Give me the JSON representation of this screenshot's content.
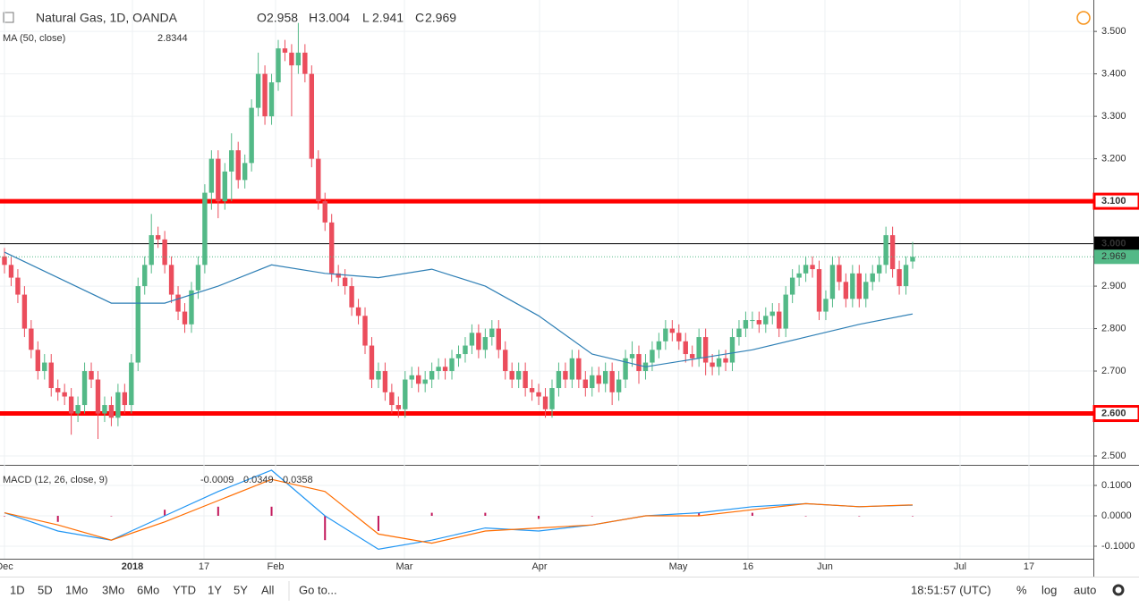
{
  "chart_data": {
    "type": "candlestick",
    "title": "Natural Gas, 1D, OANDA",
    "ohlc_labels": [
      "O",
      "H",
      "L",
      "C"
    ],
    "up_color": "#53b987",
    "down_color": "#eb4d5c",
    "open": [
      2.97,
      2.95,
      2.92,
      2.88,
      2.8,
      2.75,
      2.7,
      2.72,
      2.66,
      2.65,
      2.64,
      2.6,
      2.62,
      2.7,
      2.68,
      2.6,
      2.62,
      2.59,
      2.65,
      2.62,
      2.72,
      2.9,
      2.95,
      3.02,
      3.01,
      2.95,
      2.88,
      2.84,
      2.81,
      2.89,
      2.95,
      3.12,
      3.2,
      3.1,
      3.17,
      3.22,
      3.15,
      3.19,
      3.32,
      3.4,
      3.3,
      3.38,
      3.46,
      3.45,
      3.42,
      3.45,
      3.4,
      3.2,
      3.1,
      3.05,
      2.93,
      2.92,
      2.9,
      2.85,
      2.83,
      2.76,
      2.68,
      2.7,
      2.65,
      2.62,
      2.61,
      2.68,
      2.69,
      2.67,
      2.68,
      2.7,
      2.71,
      2.7,
      2.73,
      2.74,
      2.76,
      2.79,
      2.75,
      2.78,
      2.8,
      2.75,
      2.7,
      2.68,
      2.7,
      2.66,
      2.65,
      2.64,
      2.61,
      2.66,
      2.7,
      2.68,
      2.73,
      2.68,
      2.66,
      2.69,
      2.67,
      2.7,
      2.65,
      2.68,
      2.73,
      2.74,
      2.7,
      2.72,
      2.75,
      2.77,
      2.8,
      2.79,
      2.77,
      2.74,
      2.73,
      2.78,
      2.72,
      2.71,
      2.73,
      2.72,
      2.78,
      2.8,
      2.82,
      2.82,
      2.81,
      2.83,
      2.84,
      2.8,
      2.88,
      2.92,
      2.93,
      2.95,
      2.94,
      2.84,
      2.87,
      2.95,
      2.91,
      2.87,
      2.93,
      2.87,
      2.91,
      2.93,
      2.95,
      3.02,
      2.94,
      2.9,
      2.958
    ],
    "high": [
      2.99,
      2.97,
      2.94,
      2.9,
      2.82,
      2.77,
      2.74,
      2.74,
      2.68,
      2.67,
      2.66,
      2.64,
      2.72,
      2.72,
      2.7,
      2.64,
      2.64,
      2.67,
      2.67,
      2.74,
      2.92,
      2.97,
      3.07,
      3.04,
      3.03,
      2.97,
      2.9,
      2.86,
      2.91,
      2.97,
      3.14,
      3.22,
      3.22,
      3.19,
      3.26,
      3.24,
      3.21,
      3.34,
      3.45,
      3.42,
      3.4,
      3.48,
      3.48,
      3.47,
      3.52,
      3.47,
      3.42,
      3.22,
      3.12,
      3.07,
      2.95,
      2.94,
      2.92,
      2.87,
      2.85,
      2.78,
      2.72,
      2.72,
      2.67,
      2.64,
      2.7,
      2.71,
      2.71,
      2.7,
      2.72,
      2.73,
      2.73,
      2.75,
      2.76,
      2.78,
      2.81,
      2.81,
      2.8,
      2.82,
      2.82,
      2.77,
      2.72,
      2.72,
      2.72,
      2.68,
      2.67,
      2.66,
      2.68,
      2.72,
      2.72,
      2.75,
      2.75,
      2.7,
      2.71,
      2.71,
      2.72,
      2.72,
      2.7,
      2.75,
      2.77,
      2.76,
      2.74,
      2.77,
      2.79,
      2.82,
      2.82,
      2.81,
      2.79,
      2.76,
      2.8,
      2.8,
      2.74,
      2.75,
      2.75,
      2.8,
      2.82,
      2.84,
      2.84,
      2.84,
      2.85,
      2.86,
      2.86,
      2.9,
      2.94,
      2.95,
      2.97,
      2.97,
      2.96,
      2.89,
      2.97,
      2.97,
      2.93,
      2.95,
      2.95,
      2.93,
      2.95,
      2.97,
      3.04,
      3.04,
      2.96,
      2.97,
      3.004
    ],
    "low": [
      2.93,
      2.9,
      2.86,
      2.78,
      2.73,
      2.68,
      2.68,
      2.64,
      2.63,
      2.62,
      2.55,
      2.58,
      2.6,
      2.66,
      2.54,
      2.58,
      2.57,
      2.57,
      2.6,
      2.6,
      2.7,
      2.88,
      2.93,
      2.99,
      2.93,
      2.86,
      2.82,
      2.79,
      2.79,
      2.87,
      2.93,
      3.08,
      3.06,
      3.08,
      3.1,
      3.13,
      3.13,
      3.17,
      3.3,
      3.28,
      3.28,
      3.36,
      3.43,
      3.3,
      3.4,
      3.38,
      3.18,
      3.08,
      3.03,
      2.91,
      2.9,
      2.88,
      2.83,
      2.81,
      2.74,
      2.66,
      2.66,
      2.63,
      2.6,
      2.59,
      2.59,
      2.66,
      2.65,
      2.65,
      2.66,
      2.68,
      2.68,
      2.68,
      2.71,
      2.72,
      2.74,
      2.73,
      2.73,
      2.76,
      2.73,
      2.68,
      2.66,
      2.66,
      2.64,
      2.63,
      2.62,
      2.59,
      2.59,
      2.64,
      2.66,
      2.66,
      2.66,
      2.64,
      2.64,
      2.65,
      2.65,
      2.62,
      2.63,
      2.66,
      2.71,
      2.67,
      2.68,
      2.7,
      2.73,
      2.75,
      2.77,
      2.75,
      2.72,
      2.71,
      2.71,
      2.69,
      2.69,
      2.69,
      2.7,
      2.7,
      2.76,
      2.78,
      2.8,
      2.79,
      2.79,
      2.81,
      2.78,
      2.78,
      2.86,
      2.9,
      2.91,
      2.92,
      2.82,
      2.82,
      2.85,
      2.89,
      2.85,
      2.85,
      2.85,
      2.85,
      2.89,
      2.91,
      2.93,
      2.92,
      2.88,
      2.88,
      2.941
    ],
    "close": [
      2.95,
      2.92,
      2.88,
      2.8,
      2.75,
      2.7,
      2.72,
      2.66,
      2.65,
      2.64,
      2.6,
      2.62,
      2.7,
      2.68,
      2.6,
      2.62,
      2.59,
      2.65,
      2.62,
      2.72,
      2.9,
      2.95,
      3.02,
      3.01,
      2.95,
      2.88,
      2.84,
      2.81,
      2.89,
      2.95,
      3.12,
      3.2,
      3.1,
      3.17,
      3.22,
      3.15,
      3.19,
      3.32,
      3.4,
      3.3,
      3.38,
      3.46,
      3.45,
      3.42,
      3.45,
      3.4,
      3.2,
      3.1,
      3.05,
      2.93,
      2.92,
      2.9,
      2.85,
      2.83,
      2.76,
      2.68,
      2.7,
      2.65,
      2.62,
      2.61,
      2.68,
      2.69,
      2.67,
      2.68,
      2.7,
      2.71,
      2.7,
      2.73,
      2.74,
      2.76,
      2.79,
      2.75,
      2.78,
      2.8,
      2.75,
      2.7,
      2.68,
      2.7,
      2.66,
      2.65,
      2.64,
      2.61,
      2.66,
      2.7,
      2.68,
      2.73,
      2.68,
      2.66,
      2.69,
      2.67,
      2.7,
      2.65,
      2.68,
      2.73,
      2.74,
      2.7,
      2.72,
      2.75,
      2.77,
      2.8,
      2.79,
      2.77,
      2.74,
      2.73,
      2.78,
      2.72,
      2.71,
      2.73,
      2.72,
      2.78,
      2.8,
      2.82,
      2.82,
      2.81,
      2.83,
      2.84,
      2.8,
      2.88,
      2.92,
      2.93,
      2.95,
      2.94,
      2.84,
      2.87,
      2.95,
      2.91,
      2.87,
      2.93,
      2.87,
      2.91,
      2.93,
      2.95,
      3.02,
      2.94,
      2.9,
      2.95,
      2.969
    ],
    "ylim": [
      2.479,
      3.574
    ],
    "yticks": [
      {
        "value": 2.5,
        "label": "2.500"
      },
      {
        "value": 2.6,
        "label": "2.600"
      },
      {
        "value": 2.7,
        "label": "2.700"
      },
      {
        "value": 2.8,
        "label": "2.800"
      },
      {
        "value": 2.9,
        "label": "2.900"
      },
      {
        "value": 3.0,
        "label": "3.000"
      },
      {
        "value": 3.1,
        "label": "3.100"
      },
      {
        "value": 3.2,
        "label": "3.200"
      },
      {
        "value": 3.3,
        "label": "3.300"
      },
      {
        "value": 3.4,
        "label": "3.400"
      },
      {
        "value": 3.5,
        "label": "3.500"
      }
    ],
    "grid": true,
    "levels": [
      {
        "value": 3.1,
        "label": "3.100",
        "color": "#ff0000"
      },
      {
        "value": 2.6,
        "label": "2.600",
        "color": "#ff0000"
      },
      {
        "value": 3.0,
        "label": "3.000",
        "color": "#000000"
      }
    ],
    "xticks": [
      "Dec",
      "2018",
      "17",
      "Feb",
      "Mar",
      "Apr",
      "May",
      "16",
      "Jun",
      "Jul",
      "17"
    ],
    "ma": {
      "name": "MA (50, close)",
      "color": "#2e7fb5",
      "x": [
        0,
        8,
        16,
        24,
        32,
        40,
        48,
        56,
        64,
        72,
        80,
        88,
        96,
        104,
        112,
        120,
        128,
        136
      ],
      "values": [
        2.98,
        2.92,
        2.86,
        2.86,
        2.9,
        2.95,
        2.93,
        2.92,
        2.94,
        2.9,
        2.83,
        2.74,
        2.71,
        2.73,
        2.75,
        2.78,
        2.81,
        2.8344
      ]
    },
    "macd": {
      "name": "MACD (12, 26, close, 9)",
      "x": [
        0,
        8,
        16,
        24,
        32,
        40,
        48,
        56,
        64,
        72,
        80,
        88,
        96,
        104,
        112,
        120,
        128,
        136
      ],
      "macd": [
        0.01,
        -0.05,
        -0.08,
        0.0,
        0.08,
        0.15,
        0.0,
        -0.11,
        -0.08,
        -0.04,
        -0.05,
        -0.03,
        0.0,
        0.01,
        0.03,
        0.04,
        0.03,
        0.0349
      ],
      "signal": [
        0.01,
        -0.03,
        -0.08,
        -0.02,
        0.05,
        0.12,
        0.08,
        -0.06,
        -0.09,
        -0.05,
        -0.04,
        -0.03,
        0.0,
        0.0,
        0.02,
        0.04,
        0.03,
        0.0358
      ],
      "hist": [
        0.0,
        -0.02,
        0.0,
        0.02,
        0.03,
        0.03,
        -0.08,
        -0.05,
        0.01,
        0.01,
        -0.01,
        0.0,
        0.0,
        0.01,
        0.01,
        0.0,
        0.0,
        -0.0009
      ],
      "macd_color": "#2196f3",
      "signal_color": "#ff6d00",
      "hist_color": "#c2185b",
      "ylim": [
        -0.1412,
        0.1647
      ],
      "yticks": [
        {
          "value": 0.1,
          "label": "0.1000"
        },
        {
          "value": 0,
          "label": "0.0000"
        },
        {
          "value": -0.1,
          "label": "-0.1000"
        }
      ]
    }
  },
  "toolbar": {
    "ranges": [
      "1D",
      "5D",
      "1Mo",
      "3Mo",
      "6Mo",
      "YTD",
      "1Y",
      "5Y",
      "All"
    ],
    "goto": "Go to...",
    "time": "18:51:57 (UTC)",
    "options": [
      "%",
      "log",
      "auto"
    ]
  }
}
